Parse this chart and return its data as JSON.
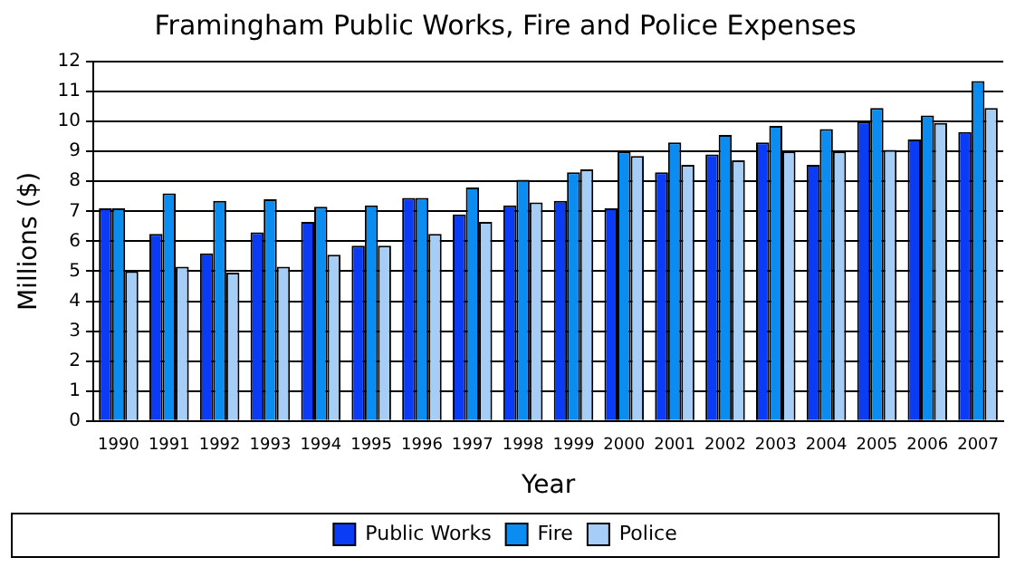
{
  "chart_data": {
    "type": "bar",
    "title": "Framingham Public Works, Fire and Police Expenses",
    "xlabel": "Year",
    "ylabel": "Millions ($)",
    "categories": [
      "1990",
      "1991",
      "1992",
      "1993",
      "1994",
      "1995",
      "1996",
      "1997",
      "1998",
      "1999",
      "2000",
      "2001",
      "2002",
      "2003",
      "2004",
      "2005",
      "2006",
      "2007"
    ],
    "series": [
      {
        "name": "Public Works",
        "color": "#0a3cf5",
        "values": [
          7.1,
          6.25,
          5.6,
          6.3,
          6.65,
          5.85,
          7.45,
          6.9,
          7.2,
          7.35,
          7.1,
          8.3,
          8.9,
          9.3,
          8.55,
          10.0,
          9.4,
          9.65
        ]
      },
      {
        "name": "Fire",
        "color": "#0a8cf0",
        "values": [
          7.1,
          7.6,
          7.35,
          7.4,
          7.15,
          7.2,
          7.45,
          7.8,
          8.05,
          8.3,
          9.0,
          9.3,
          9.55,
          9.85,
          9.75,
          10.45,
          10.2,
          11.35
        ]
      },
      {
        "name": "Police",
        "color": "#a6cdf5",
        "values": [
          5.0,
          5.15,
          4.95,
          5.15,
          5.55,
          5.85,
          6.25,
          6.65,
          7.3,
          8.4,
          8.85,
          8.55,
          8.7,
          9.0,
          9.0,
          9.05,
          9.95,
          10.45
        ]
      }
    ],
    "ylim": [
      0,
      12
    ],
    "yticks": [
      0,
      1,
      2,
      3,
      4,
      5,
      6,
      7,
      8,
      9,
      10,
      11,
      12
    ],
    "grid": "y",
    "legend": "bottom"
  }
}
